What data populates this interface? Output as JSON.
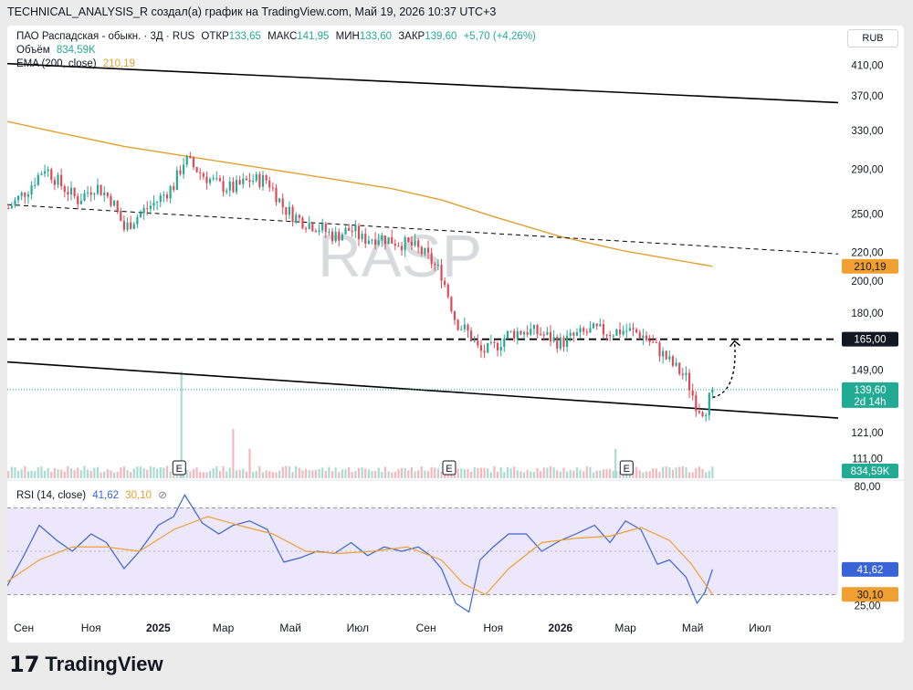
{
  "header": {
    "attribution": "TECHNICAL_ANALYSIS_R создал(а) график на TradingView.com, Май 19, 2026 10:37 UTC+3"
  },
  "legend": {
    "symbol": "ПАО Распадская - обыкн. · 3Д · RUS",
    "open_label": "ОТКР",
    "open_value": "133,65",
    "high_label": "МАКС",
    "high_value": "141,95",
    "low_label": "МИН",
    "low_value": "133,60",
    "close_label": "ЗАКР",
    "close_value": "139,60",
    "change": "+5,70 (+4,26%)",
    "volume_label": "Объём",
    "volume_value": "834,59K",
    "ema_label": "EMA (200, close)",
    "ema_value": "210,19",
    "rsi_label": "RSI (14, close)",
    "rsi_value": "41,62",
    "rsi_ma_value": "30,10"
  },
  "currency_button": "RUB",
  "watermark": "RASP",
  "earnings_marker": "E",
  "footer": {
    "logo_text": "TradingView",
    "logo_mark": "17"
  },
  "colors": {
    "up": "#22ab94",
    "down": "#e04858",
    "ema": "#e3a02f",
    "rsi": "#3964d6",
    "rsi_ma": "#f0a030",
    "rsi_band": "#ece7fa",
    "line": "#000000"
  },
  "chart_data": [
    {
      "type": "candlestick",
      "title": "ПАО Распадская - обыкн. · 3Д · RUS",
      "y_scale": "log",
      "ylim": [
        104,
        440
      ],
      "y_ticks": [
        "410,00",
        "370,00",
        "330,00",
        "290,00",
        "250,00",
        "220,00",
        "200,00",
        "180,00",
        "149,00",
        "121,00",
        "111,00"
      ],
      "x_ticks": [
        "Сен",
        "Ноя",
        "2025",
        "Мар",
        "Май",
        "Июл",
        "Сен",
        "Ноя",
        "2026",
        "Мар",
        "Май",
        "Июл"
      ],
      "x_tick_dates": [
        "2024-09-01",
        "2024-11-01",
        "2025-01-01",
        "2025-03-01",
        "2025-05-01",
        "2025-07-01",
        "2025-09-01",
        "2025-11-01",
        "2026-01-01",
        "2026-03-01",
        "2026-05-01",
        "2026-07-01"
      ],
      "x_range": [
        "2024-08-17",
        "2026-09-10"
      ],
      "price_path": [
        [
          "2024-08-18",
          255
        ],
        [
          "2024-09-05",
          272
        ],
        [
          "2024-09-20",
          292
        ],
        [
          "2024-10-05",
          275
        ],
        [
          "2024-10-20",
          262
        ],
        [
          "2024-11-05",
          275
        ],
        [
          "2024-11-20",
          262
        ],
        [
          "2024-12-01",
          238
        ],
        [
          "2024-12-15",
          250
        ],
        [
          "2025-01-01",
          262
        ],
        [
          "2025-01-15",
          275
        ],
        [
          "2025-01-25",
          300
        ],
        [
          "2025-02-10",
          285
        ],
        [
          "2025-02-25",
          275
        ],
        [
          "2025-03-10",
          272
        ],
        [
          "2025-03-25",
          280
        ],
        [
          "2025-04-10",
          280
        ],
        [
          "2025-04-25",
          255
        ],
        [
          "2025-05-10",
          245
        ],
        [
          "2025-05-25",
          240
        ],
        [
          "2025-06-10",
          232
        ],
        [
          "2025-06-25",
          238
        ],
        [
          "2025-07-05",
          230
        ],
        [
          "2025-07-20",
          232
        ],
        [
          "2025-08-05",
          228
        ],
        [
          "2025-08-20",
          225
        ],
        [
          "2025-09-01",
          218
        ],
        [
          "2025-09-15",
          205
        ],
        [
          "2025-09-28",
          175
        ],
        [
          "2025-10-10",
          168
        ],
        [
          "2025-10-20",
          158
        ],
        [
          "2025-11-01",
          160
        ],
        [
          "2025-11-15",
          168
        ],
        [
          "2025-12-01",
          170
        ],
        [
          "2025-12-15",
          168
        ],
        [
          "2026-01-01",
          163
        ],
        [
          "2026-01-15",
          167
        ],
        [
          "2026-02-01",
          170
        ],
        [
          "2026-02-15",
          169
        ],
        [
          "2026-03-01",
          170
        ],
        [
          "2026-03-15",
          168
        ],
        [
          "2026-03-30",
          160
        ],
        [
          "2026-04-10",
          153
        ],
        [
          "2026-04-25",
          145
        ],
        [
          "2026-05-05",
          132
        ],
        [
          "2026-05-12",
          130
        ],
        [
          "2026-05-19",
          139.6
        ]
      ],
      "ema": {
        "name": "EMA (200, close)",
        "points": [
          [
            "2024-08-17",
            340
          ],
          [
            "2024-10-01",
            328
          ],
          [
            "2024-12-01",
            313
          ],
          [
            "2025-02-01",
            302
          ],
          [
            "2025-04-01",
            292
          ],
          [
            "2025-06-01",
            282
          ],
          [
            "2025-08-01",
            272
          ],
          [
            "2025-09-15",
            262
          ],
          [
            "2025-11-01",
            248
          ],
          [
            "2026-01-01",
            232
          ],
          [
            "2026-03-01",
            221
          ],
          [
            "2026-05-19",
            210.19
          ]
        ]
      },
      "levels": [
        {
          "label": "165,00",
          "value": 165,
          "style": "dashed"
        },
        {
          "label": "139,60",
          "sub": "2d 14h",
          "value": 139.6,
          "style": "dotted-current"
        },
        {
          "label": "210,19",
          "value": 210.19,
          "style": "ema"
        }
      ],
      "trendlines": [
        {
          "style": "solid",
          "from": [
            "2024-08-17",
            412
          ],
          "to": [
            "2026-09-10",
            362
          ]
        },
        {
          "style": "dashed",
          "from": [
            "2024-08-17",
            258
          ],
          "to": [
            "2026-09-10",
            219
          ]
        },
        {
          "style": "solid",
          "from": [
            "2024-08-17",
            153
          ],
          "to": [
            "2026-09-10",
            127
          ]
        }
      ],
      "projection": {
        "from": [
          "2026-05-19",
          136
        ],
        "to": [
          "2026-06-08",
          164
        ]
      },
      "earnings": [
        "2025-01-20",
        "2025-09-22",
        "2026-03-02"
      ],
      "volume": {
        "label": "834,59K",
        "spike_dates": [
          "2025-01-22",
          "2025-03-10",
          "2025-03-25",
          "2026-02-20"
        ],
        "spike_values": [
          6.5,
          3.0,
          1.8,
          1.8
        ],
        "base_level": 0.35
      }
    },
    {
      "type": "line",
      "title": "RSI (14, close)",
      "ylim": [
        18,
        82
      ],
      "y_ticks": [
        "80,00",
        "25,00"
      ],
      "band": [
        30,
        70
      ],
      "mid": 50,
      "series": [
        {
          "name": "RSI",
          "value_label": "41,62",
          "points": [
            [
              "2024-08-17",
              34
            ],
            [
              "2024-09-01",
              48
            ],
            [
              "2024-09-15",
              62
            ],
            [
              "2024-10-01",
              55
            ],
            [
              "2024-10-15",
              50
            ],
            [
              "2024-11-01",
              58
            ],
            [
              "2024-11-15",
              54
            ],
            [
              "2024-12-01",
              42
            ],
            [
              "2024-12-15",
              50
            ],
            [
              "2025-01-01",
              62
            ],
            [
              "2025-01-15",
              66
            ],
            [
              "2025-01-25",
              76
            ],
            [
              "2025-02-10",
              63
            ],
            [
              "2025-02-25",
              58
            ],
            [
              "2025-03-10",
              62
            ],
            [
              "2025-03-25",
              64
            ],
            [
              "2025-04-10",
              60
            ],
            [
              "2025-04-25",
              45
            ],
            [
              "2025-05-10",
              47
            ],
            [
              "2025-05-25",
              50
            ],
            [
              "2025-06-10",
              49
            ],
            [
              "2025-06-25",
              54
            ],
            [
              "2025-07-10",
              48
            ],
            [
              "2025-07-25",
              52
            ],
            [
              "2025-08-10",
              50
            ],
            [
              "2025-08-25",
              52
            ],
            [
              "2025-09-05",
              48
            ],
            [
              "2025-09-15",
              42
            ],
            [
              "2025-09-28",
              26
            ],
            [
              "2025-10-10",
              22
            ],
            [
              "2025-10-20",
              46
            ],
            [
              "2025-11-01",
              52
            ],
            [
              "2025-11-15",
              58
            ],
            [
              "2025-12-01",
              58
            ],
            [
              "2025-12-15",
              50
            ],
            [
              "2026-01-01",
              55
            ],
            [
              "2026-01-15",
              58
            ],
            [
              "2026-02-01",
              62
            ],
            [
              "2026-02-15",
              54
            ],
            [
              "2026-03-01",
              64
            ],
            [
              "2026-03-15",
              60
            ],
            [
              "2026-03-30",
              44
            ],
            [
              "2026-04-10",
              46
            ],
            [
              "2026-04-25",
              38
            ],
            [
              "2026-05-05",
              26
            ],
            [
              "2026-05-12",
              31
            ],
            [
              "2026-05-19",
              41.62
            ]
          ]
        },
        {
          "name": "RSI MA",
          "value_label": "30,10",
          "points": [
            [
              "2024-08-17",
              36
            ],
            [
              "2024-09-15",
              46
            ],
            [
              "2024-10-15",
              52
            ],
            [
              "2024-11-15",
              52
            ],
            [
              "2024-12-15",
              50
            ],
            [
              "2025-01-15",
              60
            ],
            [
              "2025-02-15",
              66
            ],
            [
              "2025-03-15",
              62
            ],
            [
              "2025-04-15",
              58
            ],
            [
              "2025-05-15",
              50
            ],
            [
              "2025-06-15",
              49
            ],
            [
              "2025-07-15",
              50
            ],
            [
              "2025-08-15",
              52
            ],
            [
              "2025-09-15",
              46
            ],
            [
              "2025-10-05",
              35
            ],
            [
              "2025-10-25",
              30
            ],
            [
              "2025-11-15",
              42
            ],
            [
              "2025-12-15",
              54
            ],
            [
              "2026-01-15",
              56
            ],
            [
              "2026-02-15",
              57
            ],
            [
              "2026-03-15",
              61
            ],
            [
              "2026-04-10",
              55
            ],
            [
              "2026-04-30",
              44
            ],
            [
              "2026-05-19",
              30.1
            ]
          ]
        }
      ]
    }
  ]
}
